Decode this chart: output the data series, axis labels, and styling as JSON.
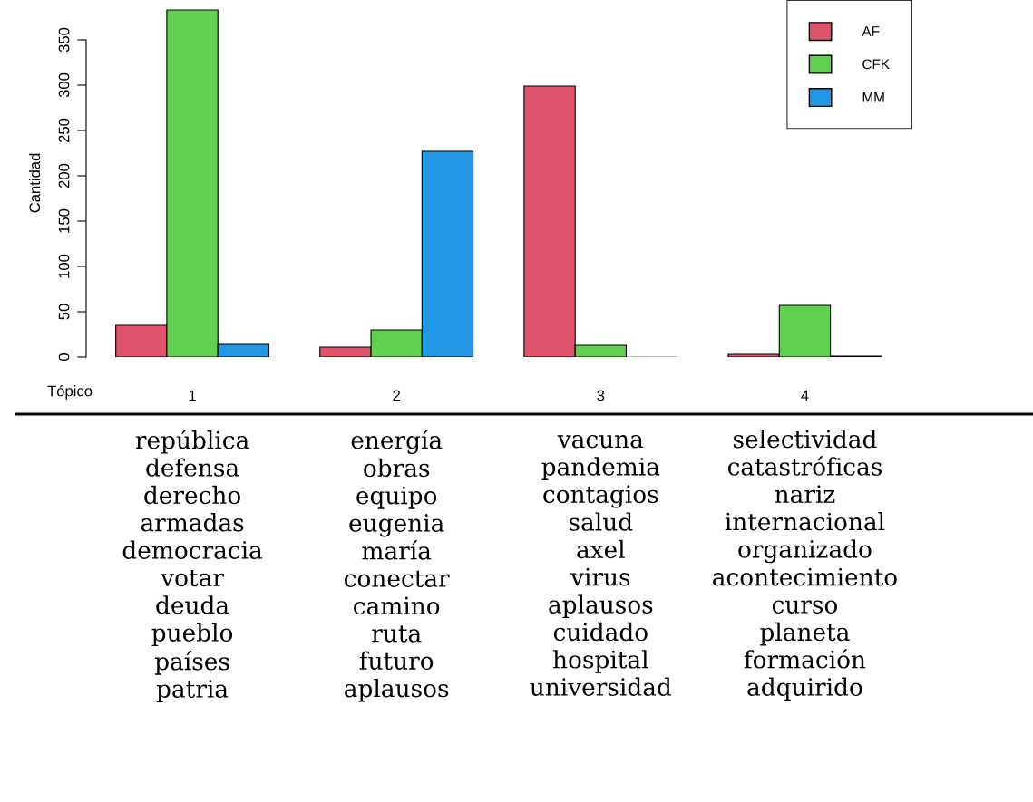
{
  "chart_data": {
    "type": "bar",
    "ylabel": "Cantidad",
    "xlabel": "Tópico",
    "categories": [
      "1",
      "2",
      "3",
      "4"
    ],
    "series": [
      {
        "name": "AF",
        "color": "#df536b",
        "values": [
          35,
          11,
          299,
          3
        ]
      },
      {
        "name": "CFK",
        "color": "#61d04f",
        "values": [
          383,
          30,
          13,
          57
        ]
      },
      {
        "name": "MM",
        "color": "#2297e6",
        "values": [
          14,
          227,
          0,
          1
        ]
      }
    ],
    "ylim": [
      0,
      384
    ],
    "yticks": [
      0,
      50,
      100,
      150,
      200,
      250,
      300,
      350
    ],
    "grid": false,
    "legend": "top right",
    "annotations": [
      "república\ndefensa\nderecho\narmadas\ndemocracia\nvotar\ndeuda\npueblo\npaíses\npatria",
      "energía\nobras\nequipo\neugenia\nmaría\nconectar\ncamino\nruta\nfuturo\naplausos",
      "vacuna\npandemia\ncontagios\nsalud\naxel\nvirus\naplausos\ncuidado\nhospital\nuniversidad",
      "selectividad\ncatastróficas\nnariz\ninternacional\norganizado\nacontecimiento\ncurso\nplaneta\nformación\nadquirido"
    ]
  }
}
